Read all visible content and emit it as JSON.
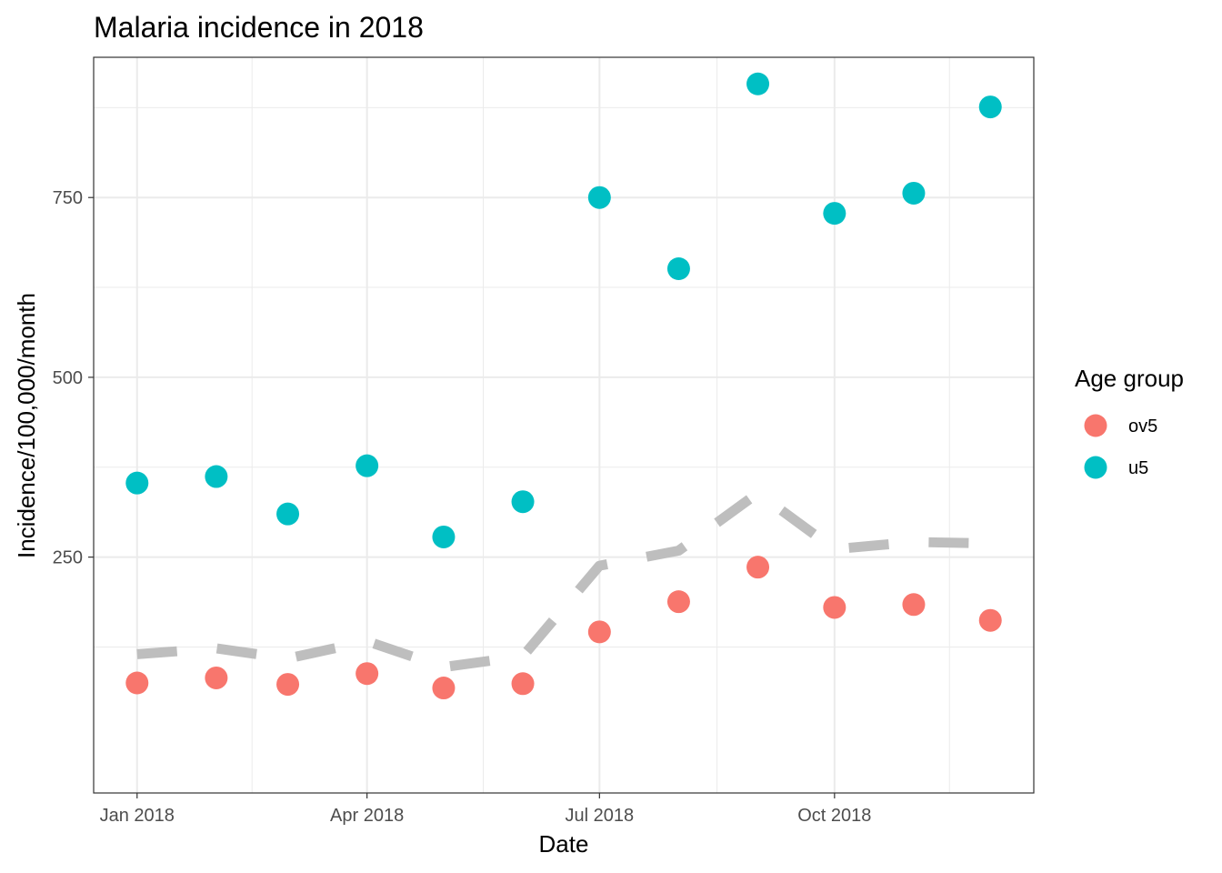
{
  "chart_data": {
    "type": "scatter",
    "title": "Malaria incidence in 2018",
    "xlabel": "Date",
    "ylabel": "Incidence/100,000/month",
    "x_ticks": [
      {
        "date": "2018-01-01",
        "label": "Jan 2018"
      },
      {
        "date": "2018-04-01",
        "label": "Apr 2018"
      },
      {
        "date": "2018-07-01",
        "label": "Jul 2018"
      },
      {
        "date": "2018-10-01",
        "label": "Oct 2018"
      }
    ],
    "y_ticks": [
      250,
      500,
      750
    ],
    "xlim": [
      "2017-12-15",
      "2018-12-18"
    ],
    "ylim": [
      -78,
      945
    ],
    "grid": true,
    "legend": {
      "title": "Age group",
      "position": "right",
      "entries": [
        {
          "name": "ov5",
          "color": "#F8766D"
        },
        {
          "name": "u5",
          "color": "#00BFC4"
        }
      ]
    },
    "x": [
      "2018-01-01",
      "2018-02-01",
      "2018-03-01",
      "2018-04-01",
      "2018-05-01",
      "2018-06-01",
      "2018-07-01",
      "2018-08-01",
      "2018-09-01",
      "2018-10-01",
      "2018-11-01",
      "2018-12-01"
    ],
    "series": [
      {
        "name": "ov5",
        "color": "#F8766D",
        "style": "points",
        "values": [
          75,
          82,
          73,
          88,
          68,
          74,
          146,
          188,
          236,
          180,
          184,
          162
        ]
      },
      {
        "name": "u5",
        "color": "#00BFC4",
        "style": "points",
        "values": [
          353,
          362,
          310,
          377,
          278,
          327,
          750,
          651,
          908,
          728,
          756,
          876
        ]
      },
      {
        "style": "dashed-line",
        "color": "#bebebe",
        "values": [
          115,
          123,
          109,
          133,
          97,
          112,
          238,
          259,
          339,
          261,
          271,
          269
        ]
      }
    ]
  }
}
